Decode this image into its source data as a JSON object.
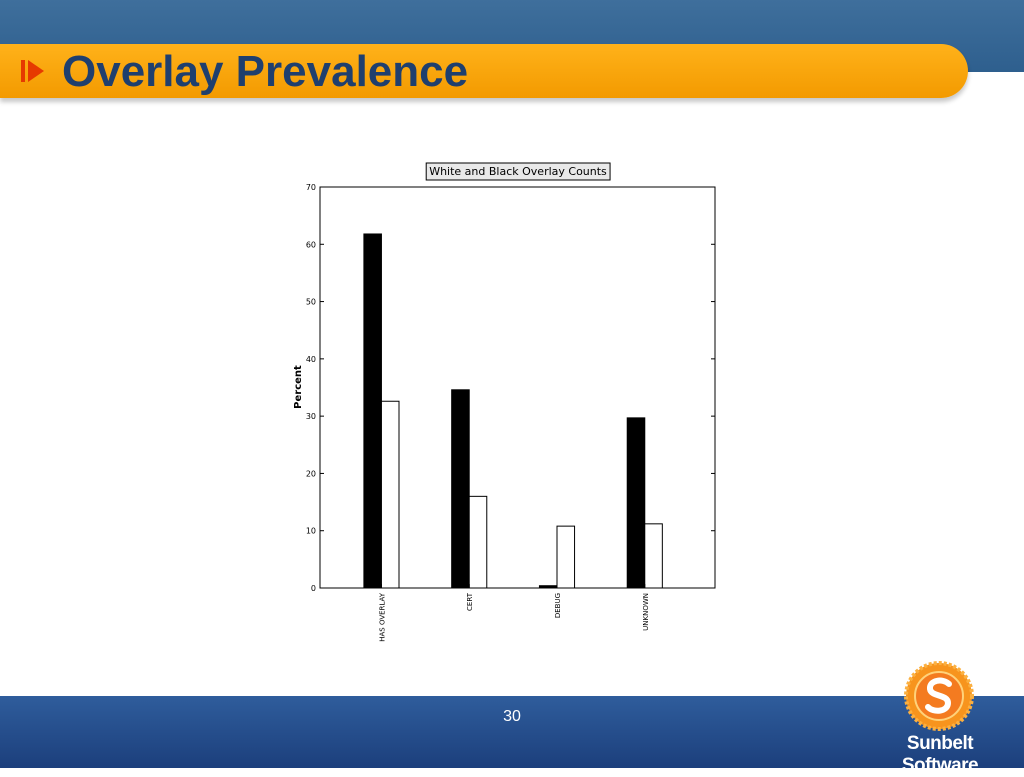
{
  "slide": {
    "title": "Overlay Prevalence",
    "page_number": "30",
    "logo_text": "Sunbelt Software",
    "colors": {
      "title_text": "#1f3f6e",
      "title_bar": "#f7a000",
      "band": "#2e5f8e",
      "footer": "#1f4380"
    }
  },
  "chart_data": {
    "type": "bar",
    "title": "White and Black Overlay Counts",
    "xlabel": "",
    "ylabel": "Percent",
    "ylim": [
      0,
      70
    ],
    "yticks": [
      0,
      10,
      20,
      30,
      40,
      50,
      60,
      70
    ],
    "categories": [
      "HAS OVERLAY",
      "CERT",
      "DEBUG",
      "UNKNOWN"
    ],
    "series": [
      {
        "color": "#000000",
        "values": [
          61.8,
          34.6,
          0.4,
          29.7
        ]
      },
      {
        "color": "#ffffff",
        "values": [
          32.6,
          16.0,
          10.8,
          11.2
        ]
      }
    ],
    "grid": false
  }
}
